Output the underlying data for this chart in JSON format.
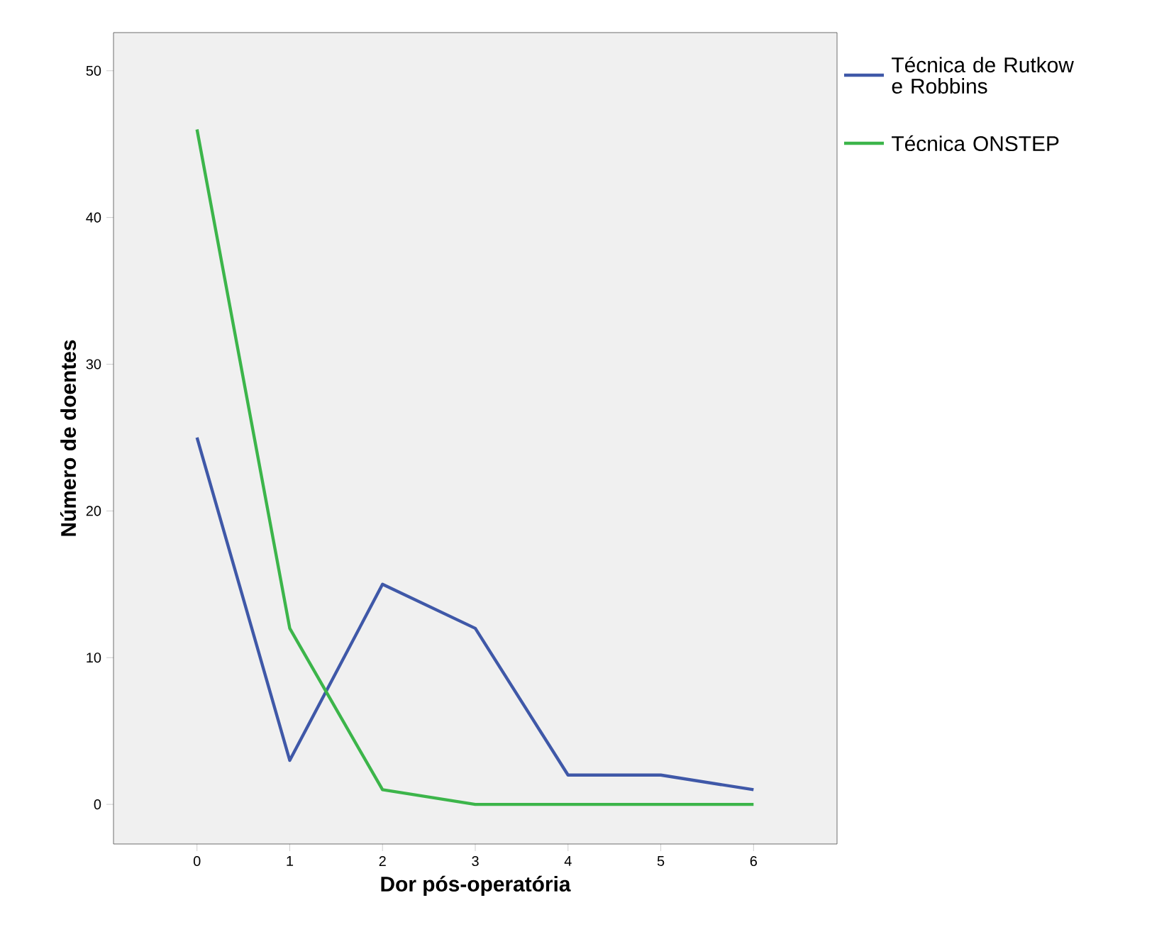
{
  "chart_data": {
    "type": "line",
    "xlabel": "Dor pós-operatória",
    "ylabel": "Número de doentes",
    "categories": [
      "0",
      "1",
      "2",
      "3",
      "4",
      "5",
      "6"
    ],
    "series": [
      {
        "name": "Técnica de Rutkow e Robbins",
        "color": "#3f58a8",
        "values": [
          25,
          3,
          15,
          12,
          2,
          2,
          1
        ]
      },
      {
        "name": "Técnica ONSTEP",
        "color": "#3cb54a",
        "values": [
          46,
          12,
          1,
          0,
          0,
          0,
          0
        ]
      }
    ],
    "ylim": [
      -2.7,
      52.6
    ],
    "yticks": [
      0,
      10,
      20,
      30,
      40,
      50
    ],
    "legend": "right",
    "grid": false,
    "marker": "none",
    "line_style": "solid"
  }
}
